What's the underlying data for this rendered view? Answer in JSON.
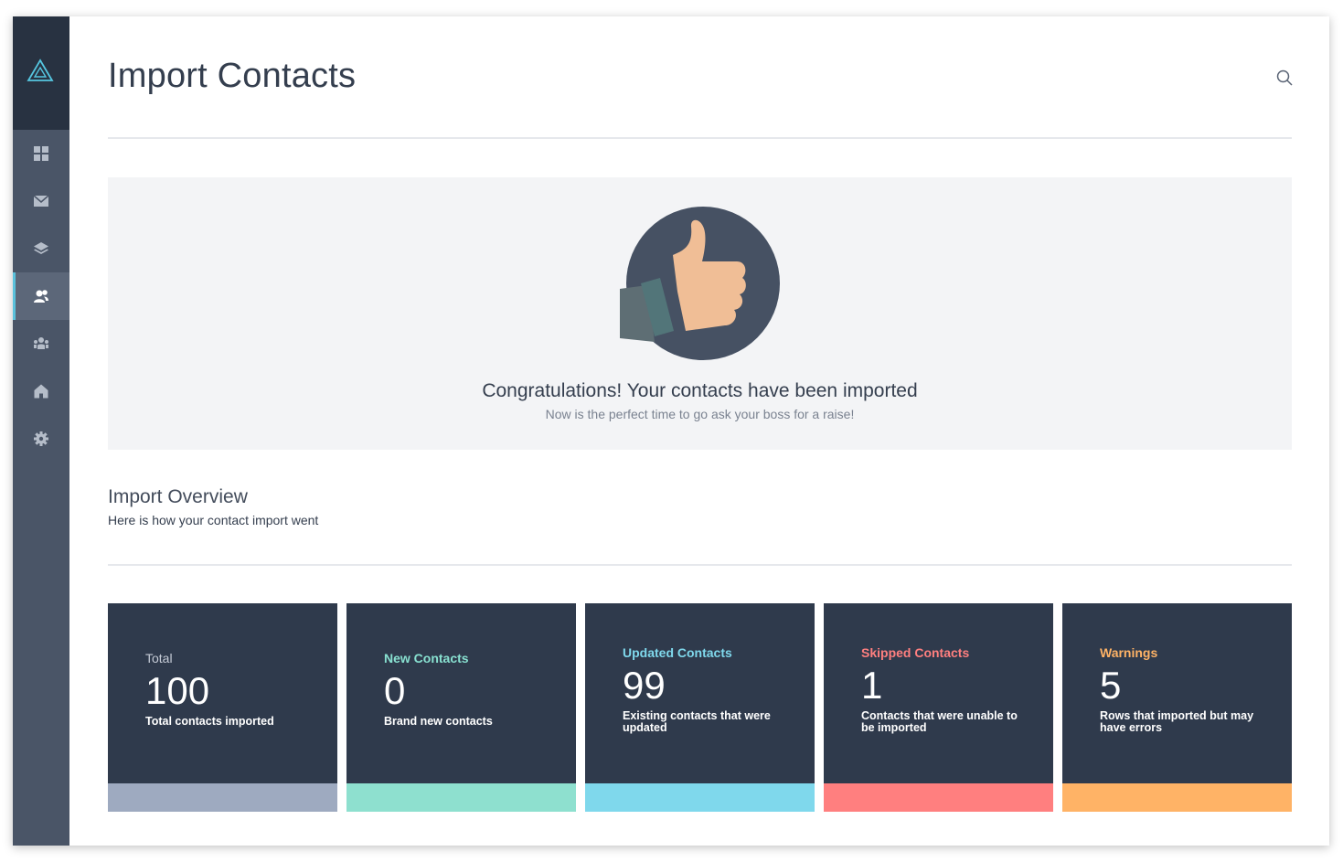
{
  "page": {
    "title": "Import Contacts"
  },
  "sidebar": {
    "items": [
      {
        "icon": "dashboard-grid-icon"
      },
      {
        "icon": "mail-icon"
      },
      {
        "icon": "layers-icon"
      },
      {
        "icon": "contacts-icon",
        "active": true
      },
      {
        "icon": "groups-icon"
      },
      {
        "icon": "home-icon"
      },
      {
        "icon": "gear-icon"
      }
    ],
    "accent": "#5bc2dc"
  },
  "hero": {
    "title": "Congratulations! Your contacts have been imported",
    "subtitle": "Now is the perfect time to go ask your boss for a raise!",
    "icon": "thumbs-up-icon"
  },
  "overview": {
    "title": "Import Overview",
    "subtitle": "Here is how your contact import went"
  },
  "cards": [
    {
      "label": "Total",
      "value": "100",
      "desc": "Total contacts imported",
      "label_color": "#c5cbd6",
      "bar_color": "#9eaac0"
    },
    {
      "label": "New Contacts",
      "value": "0",
      "desc": "Brand new contacts",
      "label_color": "#88e0d0",
      "bar_color": "#8ee0cf"
    },
    {
      "label": "Updated Contacts",
      "value": "99",
      "desc": "Existing contacts that were updated",
      "label_color": "#7fd8ec",
      "bar_color": "#7fd8ec"
    },
    {
      "label": "Skipped Contacts",
      "value": "1",
      "desc": "Contacts that were unable to be imported",
      "label_color": "#ff7f7f",
      "bar_color": "#ff7f7f"
    },
    {
      "label": "Warnings",
      "value": "5",
      "desc": "Rows that imported but may have errors",
      "label_color": "#ffb366",
      "bar_color": "#ffb366"
    }
  ]
}
